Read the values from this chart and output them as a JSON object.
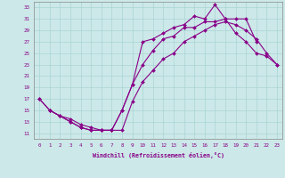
{
  "title": "",
  "xlabel": "Windchill (Refroidissement éolien,°C)",
  "background_color": "#cce8e8",
  "line_color": "#880088",
  "xlim": [
    -0.5,
    23.5
  ],
  "ylim": [
    10.0,
    34.0
  ],
  "xticks": [
    0,
    1,
    2,
    3,
    4,
    5,
    6,
    7,
    8,
    9,
    10,
    11,
    12,
    13,
    14,
    15,
    16,
    17,
    18,
    19,
    20,
    21,
    22,
    23
  ],
  "yticks": [
    11,
    13,
    15,
    17,
    19,
    21,
    23,
    25,
    27,
    29,
    31,
    33
  ],
  "line1_x": [
    0,
    1,
    2,
    3,
    4,
    5,
    6,
    7,
    8,
    9,
    10,
    11,
    12,
    13,
    14,
    15,
    16,
    17,
    18,
    19,
    20,
    21,
    22,
    23
  ],
  "line1_y": [
    17,
    15,
    14,
    13,
    12,
    11.5,
    11.5,
    11.5,
    15,
    19.5,
    23,
    25.5,
    27.5,
    28,
    29.5,
    29.5,
    30.5,
    30.5,
    31,
    28.5,
    27,
    25,
    24.5,
    23
  ],
  "line2_x": [
    0,
    1,
    2,
    3,
    4,
    5,
    6,
    7,
    8,
    9,
    10,
    11,
    12,
    13,
    14,
    15,
    16,
    17,
    18,
    19,
    20,
    21
  ],
  "line2_y": [
    17,
    15,
    14,
    13,
    12,
    11.5,
    11.5,
    11.5,
    15,
    19.5,
    27,
    27.5,
    28.5,
    29.5,
    30,
    31.5,
    31,
    33.5,
    31,
    31,
    31,
    27
  ],
  "line3_x": [
    1,
    2,
    3,
    4,
    5,
    6,
    7,
    8,
    9,
    10,
    11,
    12,
    13,
    14,
    15,
    16,
    17,
    18,
    19,
    20,
    21,
    22,
    23
  ],
  "line3_y": [
    15,
    14,
    13.5,
    12.5,
    12,
    11.5,
    11.5,
    11.5,
    16.5,
    20,
    22,
    24,
    25,
    27,
    28,
    29,
    30,
    30.5,
    30,
    29,
    27.5,
    25,
    23
  ],
  "grid_color": "#aad4d4",
  "marker": "D",
  "markersize": 2.0,
  "linewidth": 0.8,
  "tick_fontsize": 4.2,
  "xlabel_fontsize": 4.8
}
